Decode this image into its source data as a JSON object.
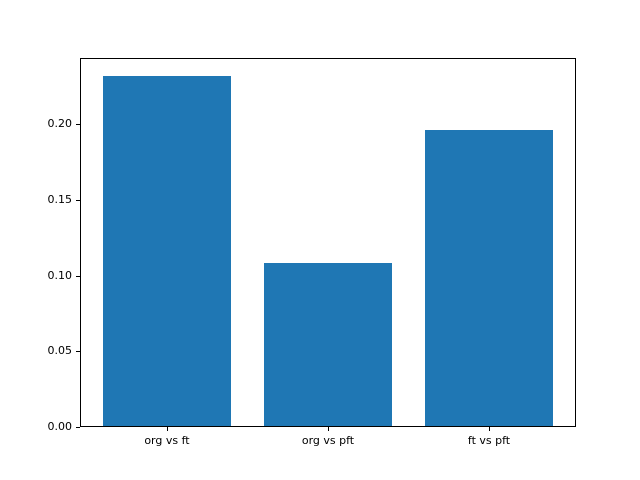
{
  "chart_data": {
    "type": "bar",
    "title": "",
    "xlabel": "",
    "ylabel": "",
    "categories": [
      "org vs ft",
      "org vs pft",
      "ft vs pft"
    ],
    "values": [
      0.232,
      0.108,
      0.196
    ],
    "ylim": [
      0,
      0.2436
    ],
    "yticks": [
      0.0,
      0.05,
      0.1,
      0.15,
      0.2
    ],
    "ytick_labels": [
      "0.00",
      "0.05",
      "0.10",
      "0.15",
      "0.20"
    ],
    "bar_color": "#1f77b4",
    "bar_width_fraction": 0.8,
    "grid": false,
    "legend": false,
    "background_color": "#ffffff",
    "spine_color": "#000000"
  }
}
